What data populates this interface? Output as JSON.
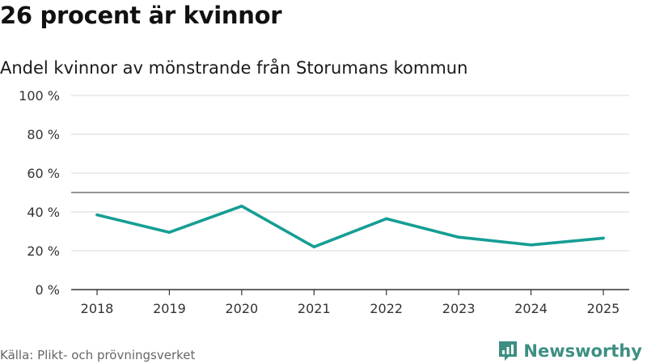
{
  "header": {
    "title": "26 procent är kvinnor",
    "subtitle": "Andel kvinnor av mönstrande från Storumans kommun"
  },
  "footer": {
    "source": "Källa: Plikt- och prövningsverket",
    "brand": "Newsworthy"
  },
  "colors": {
    "line": "#159e94",
    "grid": "#d9d9d9",
    "reference": "#555555",
    "axis": "#333333",
    "brand": "#3d8f82"
  },
  "chart_data": {
    "type": "line",
    "title": "26 procent är kvinnor",
    "subtitle": "Andel kvinnor av mönstrande från Storumans kommun",
    "xlabel": "",
    "ylabel": "",
    "categories": [
      "2018",
      "2019",
      "2020",
      "2021",
      "2022",
      "2023",
      "2024",
      "2025"
    ],
    "series": [
      {
        "name": "Andel kvinnor",
        "values": [
          38.5,
          29.5,
          43,
          22,
          36.5,
          27,
          23,
          26.5
        ]
      }
    ],
    "ylim": [
      0,
      100
    ],
    "yticks": [
      0,
      20,
      40,
      60,
      80,
      100
    ],
    "ytick_labels": [
      "0 %",
      "20 %",
      "40 %",
      "60 %",
      "80 %",
      "100 %"
    ],
    "reference_line": 50,
    "grid": true,
    "legend": "none"
  }
}
